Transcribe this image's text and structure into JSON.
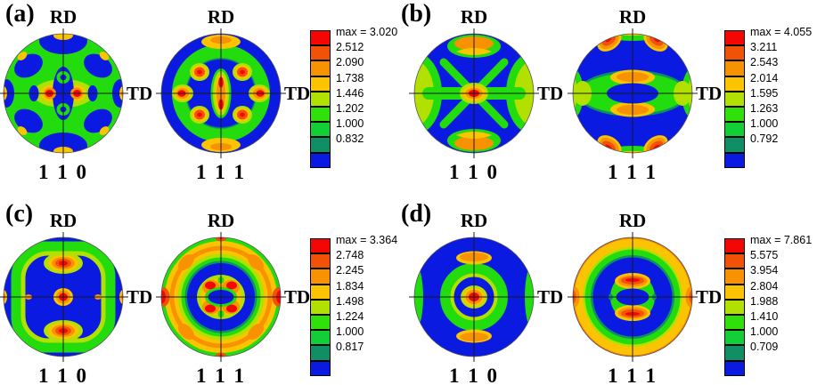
{
  "legend_colors": [
    "#f40703",
    "#f15208",
    "#f89200",
    "#fcc400",
    "#b2e000",
    "#2fe00a",
    "#12cf36",
    "#0f8f63",
    "#0b1ae1"
  ],
  "panels": [
    {
      "id": "a",
      "label": "(a)",
      "figures": [
        {
          "rd": "RD",
          "td": "TD",
          "miller": "1 1 0"
        },
        {
          "rd": "RD",
          "td": "TD",
          "miller": "1 1 1"
        }
      ],
      "scale": {
        "max_label": "max = 3.020",
        "values": [
          "2.512",
          "2.090",
          "1.738",
          "1.446",
          "1.202",
          "1.000",
          "0.832"
        ]
      }
    },
    {
      "id": "b",
      "label": "(b)",
      "figures": [
        {
          "rd": "RD",
          "td": "TD",
          "miller": "1 1 0"
        },
        {
          "rd": "RD",
          "td": "TD",
          "miller": "1 1 1"
        }
      ],
      "scale": {
        "max_label": "max = 4.055",
        "values": [
          "3.211",
          "2.543",
          "2.014",
          "1.595",
          "1.263",
          "1.000",
          "0.792"
        ]
      }
    },
    {
      "id": "c",
      "label": "(c)",
      "figures": [
        {
          "rd": "RD",
          "td": "TD",
          "miller": "1 1 0"
        },
        {
          "rd": "RD",
          "td": "TD",
          "miller": "1 1 1"
        }
      ],
      "scale": {
        "max_label": "max = 3.364",
        "values": [
          "2.748",
          "2.245",
          "1.834",
          "1.498",
          "1.224",
          "1.000",
          "0.817"
        ]
      }
    },
    {
      "id": "d",
      "label": "(d)",
      "figures": [
        {
          "rd": "RD",
          "td": "TD",
          "miller": "1 1 0"
        },
        {
          "rd": "RD",
          "td": "TD",
          "miller": "1 1 1"
        }
      ],
      "scale": {
        "max_label": "max = 7.861",
        "values": [
          "5.575",
          "3.954",
          "2.804",
          "1.988",
          "1.410",
          "1.000",
          "0.709"
        ]
      }
    }
  ],
  "chart_data": [
    {
      "type": "heatmap",
      "subtype": "pole-figure-contour",
      "panel": "(a)",
      "pole_figures": [
        "1 1 0",
        "1 1 1"
      ],
      "axis_labels": {
        "top": "RD",
        "right": "TD"
      },
      "max": 3.02,
      "contour_levels": [
        2.512,
        2.09,
        1.738,
        1.446,
        1.202,
        1.0,
        0.832
      ]
    },
    {
      "type": "heatmap",
      "subtype": "pole-figure-contour",
      "panel": "(b)",
      "pole_figures": [
        "1 1 0",
        "1 1 1"
      ],
      "axis_labels": {
        "top": "RD",
        "right": "TD"
      },
      "max": 4.055,
      "contour_levels": [
        3.211,
        2.543,
        2.014,
        1.595,
        1.263,
        1.0,
        0.792
      ]
    },
    {
      "type": "heatmap",
      "subtype": "pole-figure-contour",
      "panel": "(c)",
      "pole_figures": [
        "1 1 0",
        "1 1 1"
      ],
      "axis_labels": {
        "top": "RD",
        "right": "TD"
      },
      "max": 3.364,
      "contour_levels": [
        2.748,
        2.245,
        1.834,
        1.498,
        1.224,
        1.0,
        0.817
      ]
    },
    {
      "type": "heatmap",
      "subtype": "pole-figure-contour",
      "panel": "(d)",
      "pole_figures": [
        "1 1 0",
        "1 1 1"
      ],
      "axis_labels": {
        "top": "RD",
        "right": "TD"
      },
      "max": 7.861,
      "contour_levels": [
        5.575,
        3.954,
        2.804,
        1.988,
        1.41,
        1.0,
        0.709
      ]
    }
  ]
}
